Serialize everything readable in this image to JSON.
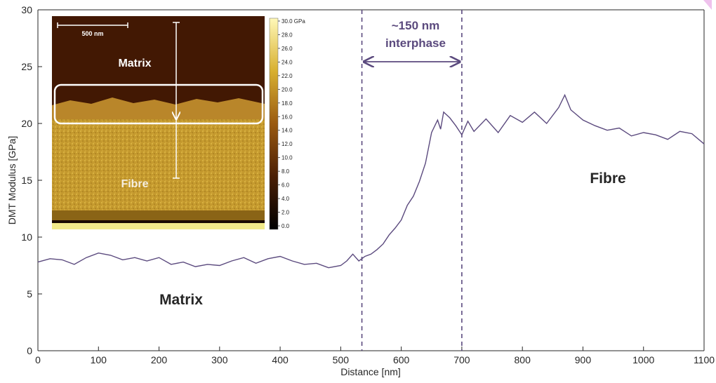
{
  "chart_data": {
    "type": "line",
    "xlabel": "Distance [nm]",
    "ylabel": "DMT Modulus [GPa]",
    "xlim": [
      0,
      1100
    ],
    "ylim": [
      0,
      30
    ],
    "x_ticks": [
      "0",
      "100",
      "200",
      "300",
      "400",
      "500",
      "600",
      "700",
      "800",
      "900",
      "1000",
      "1100"
    ],
    "y_ticks": [
      "0",
      "5",
      "10",
      "15",
      "20",
      "25",
      "30"
    ],
    "grid": false,
    "line_color": "#5b4a7e",
    "series": [
      {
        "x": [
          0,
          20,
          40,
          60,
          80,
          100,
          120,
          140,
          160,
          180,
          200,
          220,
          240,
          260,
          280,
          300,
          320,
          340,
          360,
          380,
          400,
          420,
          440,
          460,
          480,
          500,
          510,
          520,
          530,
          540,
          550,
          560,
          570,
          580,
          590,
          600,
          610,
          620,
          630,
          640,
          650,
          660,
          665,
          670,
          680,
          690,
          700,
          710,
          720,
          740,
          760,
          780,
          800,
          820,
          840,
          860,
          870,
          880,
          900,
          920,
          940,
          960,
          980,
          1000,
          1020,
          1040,
          1060,
          1080,
          1100
        ],
        "y": [
          7.8,
          8.1,
          8.0,
          7.6,
          8.2,
          8.6,
          8.4,
          8.0,
          8.2,
          7.9,
          8.2,
          7.6,
          7.8,
          7.4,
          7.6,
          7.5,
          7.9,
          8.2,
          7.7,
          8.1,
          8.3,
          7.9,
          7.6,
          7.7,
          7.3,
          7.5,
          7.9,
          8.5,
          7.9,
          8.3,
          8.5,
          8.9,
          9.4,
          10.2,
          10.8,
          11.5,
          12.8,
          13.6,
          14.9,
          16.5,
          19.2,
          20.3,
          19.5,
          21.0,
          20.5,
          19.8,
          19.0,
          20.2,
          19.3,
          20.4,
          19.2,
          20.7,
          20.1,
          21.0,
          20.0,
          21.4,
          22.5,
          21.2,
          20.3,
          19.8,
          19.4,
          19.6,
          18.9,
          19.2,
          19.0,
          18.6,
          19.3,
          19.1,
          18.2
        ]
      }
    ],
    "annotations": {
      "region_lines_x": [
        535,
        700
      ],
      "interphase_line1": "~150 nm",
      "interphase_line2": "interphase",
      "matrix_label": "Matrix",
      "fibre_label": "Fibre"
    },
    "inset": {
      "scalebar_label": "500 nm",
      "matrix_label": "Matrix",
      "fibre_label": "Fibre",
      "colorbar_ticks": [
        "30.0 GPa",
        "28.0",
        "26.0",
        "24.0",
        "22.0",
        "20.0",
        "18.0",
        "16.0",
        "14.0",
        "12.0",
        "10.0",
        "8.0",
        "6.0",
        "4.0",
        "2.0",
        "0.0"
      ]
    }
  }
}
